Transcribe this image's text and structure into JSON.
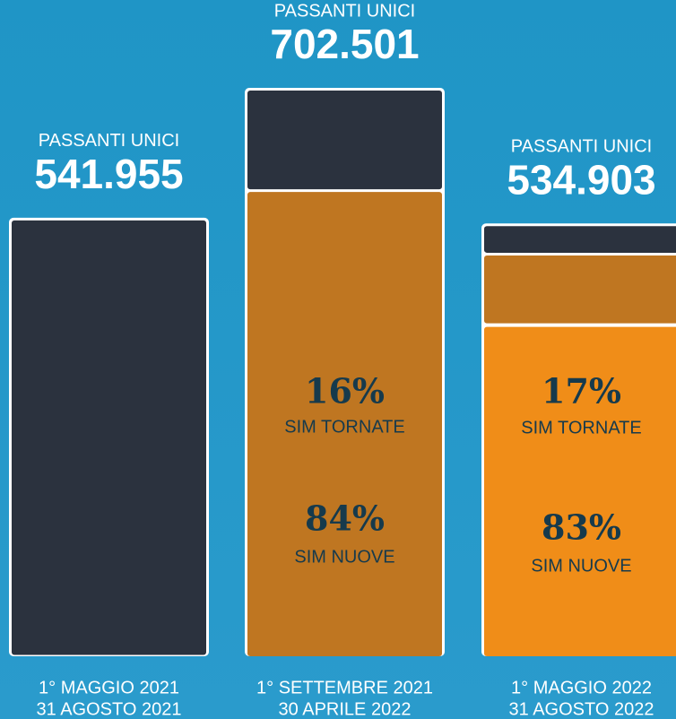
{
  "chart_data": {
    "type": "bar",
    "value_title": "PASSANTI UNICI",
    "categories": [
      [
        "1° MAGGIO 2021",
        "31 AGOSTO 2021"
      ],
      [
        "1° SETTEMBRE 2021",
        "30 APRILE 2022"
      ],
      [
        "1° MAGGIO 2022",
        "31 AGOSTO 2022"
      ]
    ],
    "values": [
      541955,
      702501,
      534903
    ],
    "value_labels": [
      "541.955",
      "702.501",
      "534.903"
    ],
    "returning": {
      "name": "SIM TORNATE",
      "values": [
        null,
        16,
        17
      ],
      "value_labels": [
        null,
        "16%",
        "17%"
      ]
    },
    "new": {
      "name": "SIM NUOVE",
      "values": [
        null,
        84,
        83
      ],
      "value_labels": [
        null,
        "84%",
        "83%"
      ]
    }
  }
}
